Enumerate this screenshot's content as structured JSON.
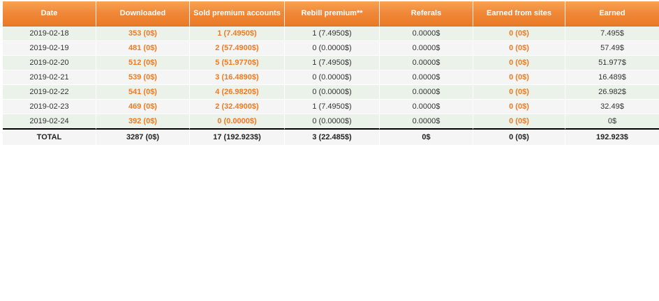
{
  "headers": [
    "Date",
    "Downloaded",
    "Sold premium accounts",
    "Rebill premium**",
    "Referals",
    "Earned from sites",
    "Earned"
  ],
  "rows": [
    [
      "2019-02-18",
      "353 (0$)",
      "1 (7.4950$)",
      "1 (7.4950$)",
      "0.0000$",
      "0 (0$)",
      "7.495$"
    ],
    [
      "2019-02-19",
      "481 (0$)",
      "2 (57.4900$)",
      "0 (0.0000$)",
      "0.0000$",
      "0 (0$)",
      "57.49$"
    ],
    [
      "2019-02-20",
      "512 (0$)",
      "5 (51.9770$)",
      "1 (7.4950$)",
      "0.0000$",
      "0 (0$)",
      "51.977$"
    ],
    [
      "2019-02-21",
      "539 (0$)",
      "3 (16.4890$)",
      "0 (0.0000$)",
      "0.0000$",
      "0 (0$)",
      "16.489$"
    ],
    [
      "2019-02-22",
      "541 (0$)",
      "4 (26.9820$)",
      "0 (0.0000$)",
      "0.0000$",
      "0 (0$)",
      "26.982$"
    ],
    [
      "2019-02-23",
      "469 (0$)",
      "2 (32.4900$)",
      "1 (7.4950$)",
      "0.0000$",
      "0 (0$)",
      "32.49$"
    ],
    [
      "2019-02-24",
      "392 (0$)",
      "0 (0.0000$)",
      "0 (0.0000$)",
      "0.0000$",
      "0 (0$)",
      "0$"
    ]
  ],
  "total": [
    "TOTAL",
    "3287 (0$)",
    "17 (192.923$)",
    "3 (22.485$)",
    "0$",
    "0 (0$)",
    "192.923$"
  ],
  "colors": {
    "header_orange": "#f0893a",
    "highlight_text": "#f07a22",
    "row_green": "#eaf2ea",
    "row_grey": "#f5f5f5"
  }
}
